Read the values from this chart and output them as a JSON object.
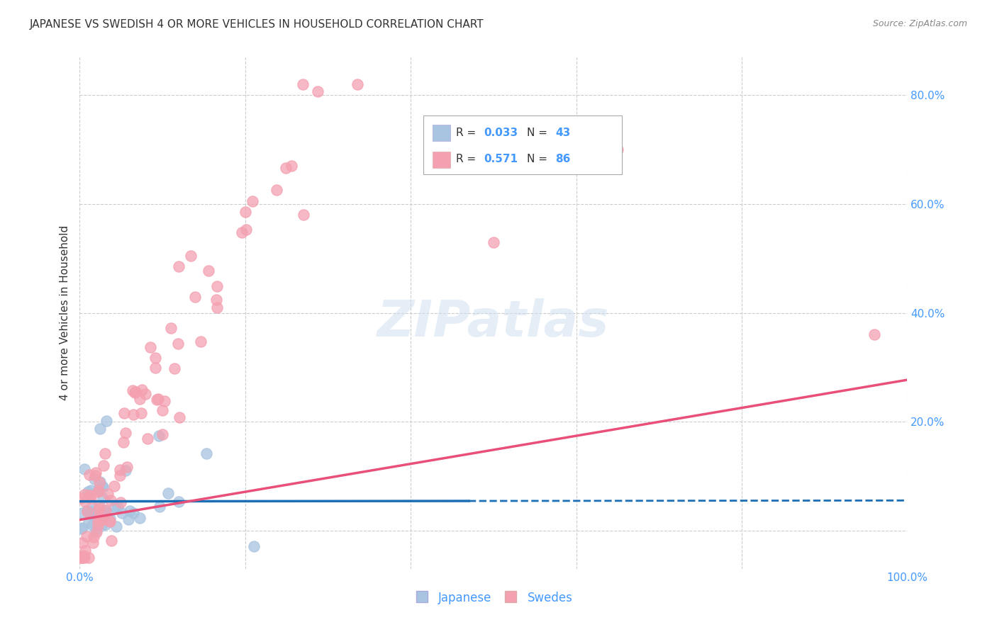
{
  "title": "JAPANESE VS SWEDISH 4 OR MORE VEHICLES IN HOUSEHOLD CORRELATION CHART",
  "source": "Source: ZipAtlas.com",
  "ylabel": "4 or more Vehicles in Household",
  "xlim": [
    0,
    1.0
  ],
  "ylim": [
    -0.07,
    0.87
  ],
  "japanese_R": 0.033,
  "japanese_N": 43,
  "swedish_R": 0.571,
  "swedish_N": 86,
  "japanese_color": "#a8c4e0",
  "swedish_color": "#f4a0b0",
  "japanese_line_color": "#1c6eb5",
  "swedish_line_color": "#e8507a",
  "tick_color": "#4499ff",
  "grid_color": "#cccccc",
  "watermark_color": "#d0dff0",
  "title_color": "#333333",
  "source_color": "#888888",
  "legend_border_color": "#aaaaaa"
}
